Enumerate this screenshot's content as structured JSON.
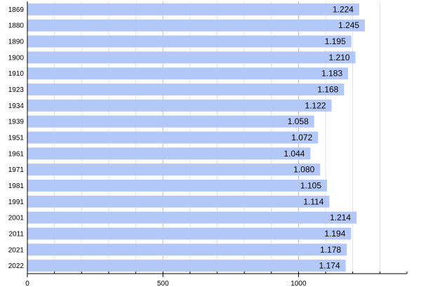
{
  "chart_data": {
    "type": "bar",
    "orientation": "horizontal",
    "categories": [
      "1869",
      "1880",
      "1890",
      "1900",
      "1910",
      "1923",
      "1934",
      "1939",
      "1951",
      "1961",
      "1971",
      "1981",
      "1991",
      "2001",
      "2011",
      "2021",
      "2022"
    ],
    "values": [
      1224,
      1245,
      1195,
      1210,
      1183,
      1168,
      1122,
      1058,
      1072,
      1044,
      1080,
      1105,
      1114,
      1214,
      1194,
      1178,
      1174
    ],
    "value_labels": [
      "1.224",
      "1.245",
      "1.195",
      "1.210",
      "1.183",
      "1.168",
      "1.122",
      "1.058",
      "1.072",
      "1.044",
      "1.080",
      "1.105",
      "1.114",
      "1.214",
      "1.194",
      "1.178",
      "1.174"
    ],
    "xlim": [
      0,
      1400
    ],
    "x_ticks": [
      0,
      500,
      1000
    ],
    "x_tick_labels": [
      "0",
      "500",
      "1000"
    ],
    "title": "",
    "xlabel": "",
    "ylabel": "",
    "grid": true,
    "colors": {
      "bar": "#b4c8f8",
      "grid_major": "#bfbfbf",
      "grid_minor": "#e3e3e3",
      "axis": "#000000",
      "background": "#ffffff"
    }
  }
}
